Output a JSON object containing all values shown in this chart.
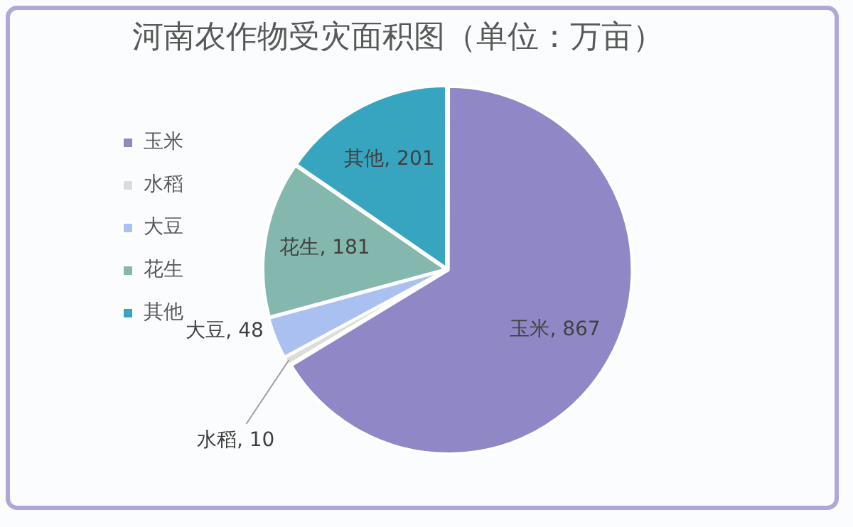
{
  "chart_data": {
    "type": "pie",
    "title": "河南农作物受灾面积图（单位：万亩）",
    "categories": [
      "玉米",
      "水稻",
      "大豆",
      "花生",
      "其他"
    ],
    "values": [
      867,
      10,
      48,
      181,
      201
    ],
    "colors": [
      "#9088c6",
      "#dcdcdc",
      "#a9c0f0",
      "#84b8ae",
      "#38a5c0"
    ],
    "value_labels": [
      "玉米, 867",
      "水稻, 10",
      "大豆, 48",
      "花生, 181",
      "其他, 201"
    ],
    "legend": "left"
  }
}
